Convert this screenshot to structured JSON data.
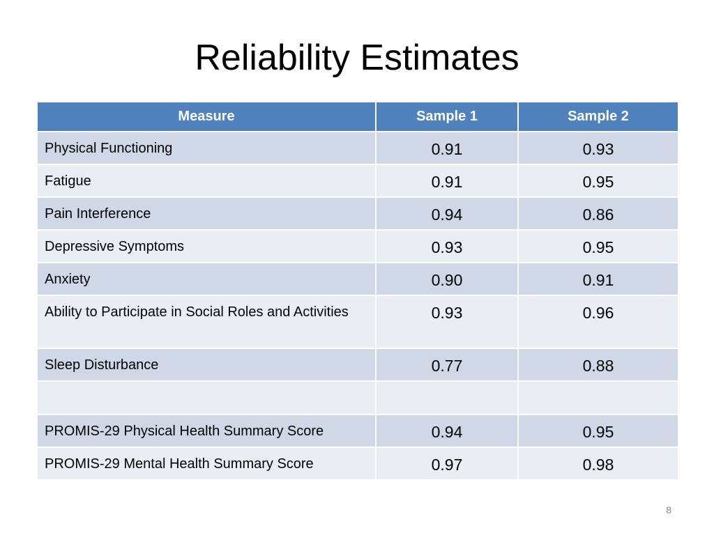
{
  "title": "Reliability Estimates",
  "table": {
    "headers": [
      "Measure",
      "Sample 1",
      "Sample 2"
    ],
    "rows": [
      {
        "measure": "Physical Functioning",
        "sample1": "0.91",
        "sample2": "0.93"
      },
      {
        "measure": "Fatigue",
        "sample1": "0.91",
        "sample2": "0.95"
      },
      {
        "measure": "Pain Interference",
        "sample1": "0.94",
        "sample2": "0.86"
      },
      {
        "measure": "Depressive Symptoms",
        "sample1": "0.93",
        "sample2": "0.95"
      },
      {
        "measure": "Anxiety",
        "sample1": "0.90",
        "sample2": "0.91"
      },
      {
        "measure": "Ability to Participate in Social Roles and Activities",
        "sample1": "0.93",
        "sample2": "0.96"
      },
      {
        "measure": "Sleep Disturbance",
        "sample1": "0.77",
        "sample2": "0.88"
      },
      {
        "measure": "",
        "sample1": "",
        "sample2": ""
      },
      {
        "measure": "PROMIS-29 Physical Health Summary Score",
        "sample1": "0.94",
        "sample2": "0.95"
      },
      {
        "measure": "PROMIS-29 Mental Health Summary Score",
        "sample1": "0.97",
        "sample2": "0.98"
      }
    ]
  },
  "page_number": "8",
  "colors": {
    "header_bg": "#4f81bd",
    "row_dark": "#d0d8e8",
    "row_light": "#e9edf4"
  }
}
